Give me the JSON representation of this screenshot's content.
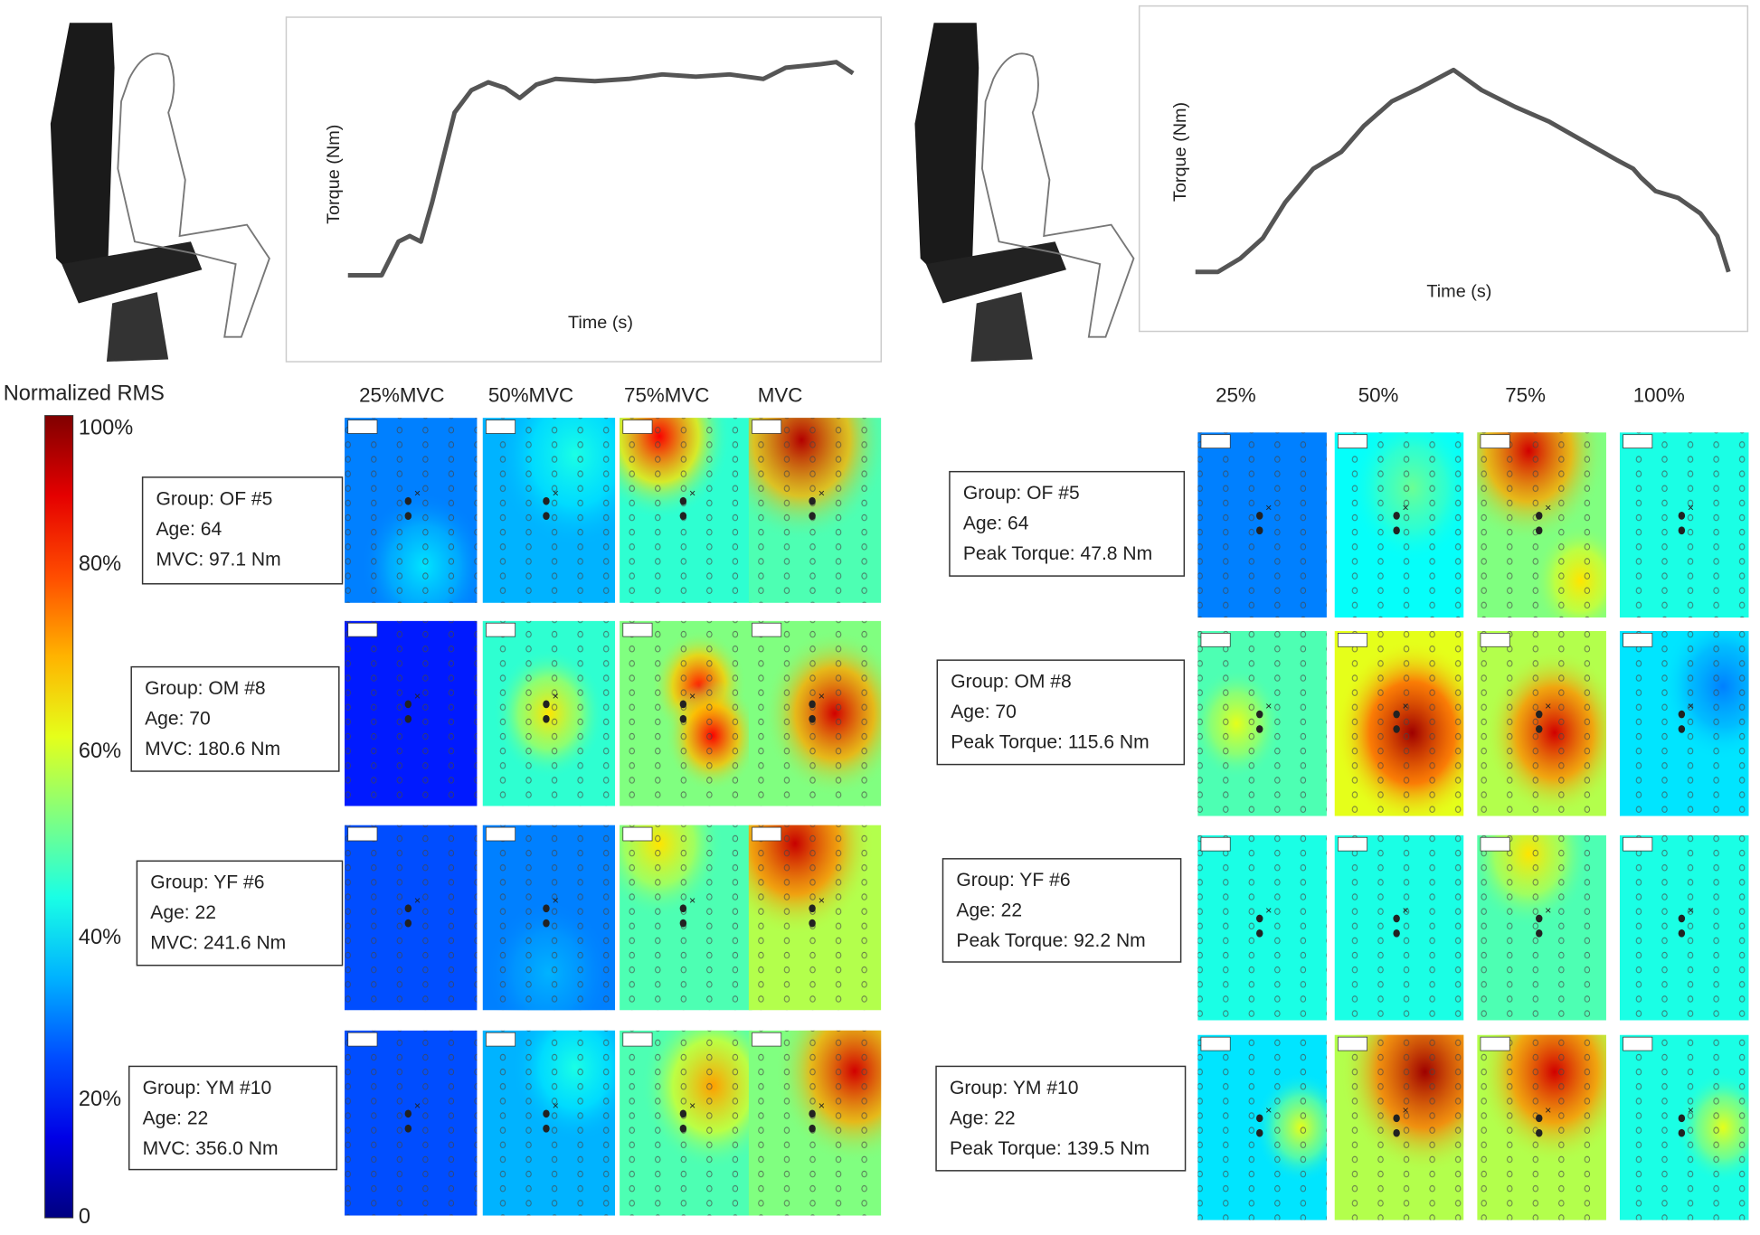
{
  "colorbar": {
    "title": "Normalized RMS",
    "ticks": [
      "100%",
      "80%",
      "60%",
      "40%",
      "20%",
      "0"
    ]
  },
  "left": {
    "torque_plot": {
      "ylabel": "Torque (Nm)",
      "xlabel": "Time (s)"
    },
    "columns": [
      "25%MVC",
      "50%MVC",
      "75%MVC",
      "MVC"
    ],
    "subjects": [
      {
        "group": "Group: OF #5",
        "age": "Age: 64",
        "torque": "MVC: 97.1 Nm"
      },
      {
        "group": "Group: OM #8",
        "age": "Age: 70",
        "torque": "MVC: 180.6 Nm"
      },
      {
        "group": "Group: YF #6",
        "age": "Age: 22",
        "torque": "MVC: 241.6 Nm"
      },
      {
        "group": "Group: YM #10",
        "age": "Age: 22",
        "torque": "MVC: 356.0 Nm"
      }
    ]
  },
  "right": {
    "torque_plot": {
      "ylabel": "Torque (Nm)",
      "xlabel": "Time (s)"
    },
    "columns": [
      "25%",
      "50%",
      "75%",
      "100%"
    ],
    "subjects": [
      {
        "group": "Group: OF #5",
        "age": "Age: 64",
        "torque": "Peak Torque: 47.8 Nm"
      },
      {
        "group": "Group: OM #8",
        "age": "Age: 70",
        "torque": "Peak Torque: 115.6 Nm"
      },
      {
        "group": "Group: YF #6",
        "age": "Age: 22",
        "torque": "Peak Torque: 92.2 Nm"
      },
      {
        "group": "Group: YM #10",
        "age": "Age: 22",
        "torque": "Peak Torque: 139.5 Nm"
      }
    ]
  }
}
